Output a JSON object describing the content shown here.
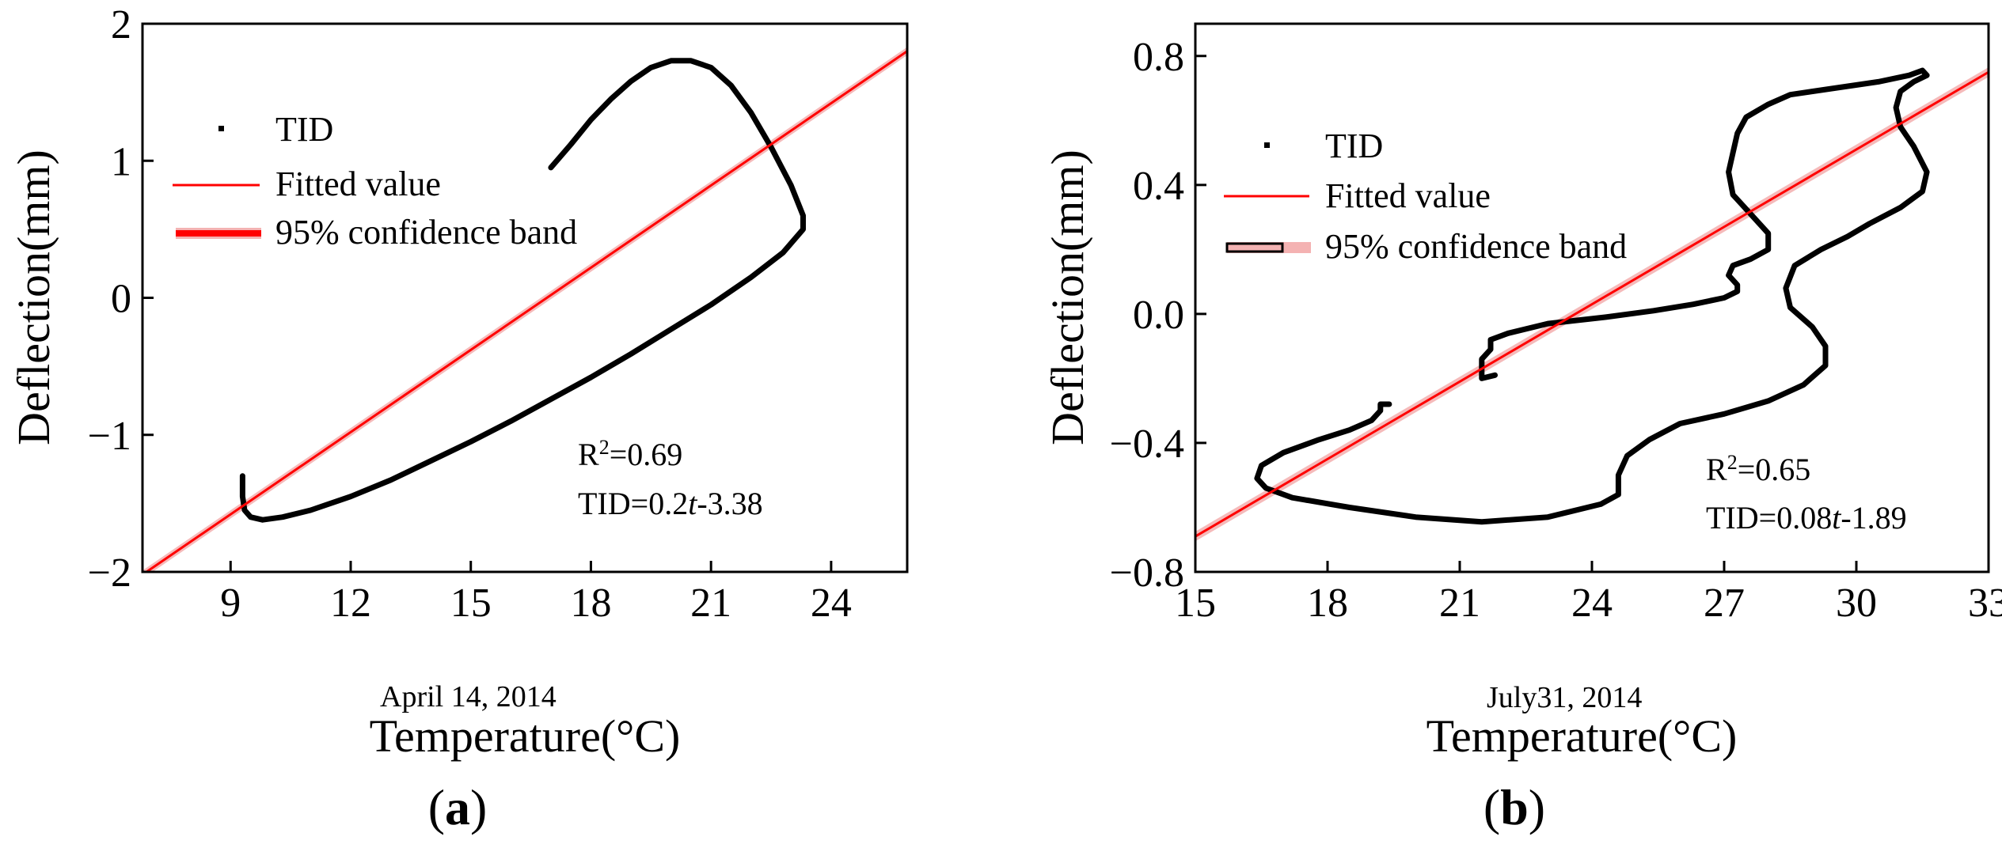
{
  "chart_data": [
    {
      "type": "scatter",
      "panel_label": "(a)",
      "panel_letter": "a",
      "date_label": "April 14, 2014",
      "xlabel": "Temperature(°C)",
      "ylabel": "Deflection(mm)",
      "xlim": [
        6.8,
        25.9
      ],
      "ylim": [
        -2,
        2
      ],
      "xticks": [
        9,
        12,
        15,
        18,
        21,
        24
      ],
      "yticks": [
        2,
        1,
        0,
        -1,
        -2
      ],
      "ytick_labels": [
        "2",
        "1",
        "0",
        "−1",
        "−2"
      ],
      "legend": {
        "position": "upper-left",
        "entries": [
          "TID",
          "Fitted value",
          "95% confidence band"
        ]
      },
      "annotation": {
        "r2": "R²=0.69",
        "equation": "TID=0.2t-3.38"
      },
      "fit": {
        "slope": 0.2,
        "intercept": -3.38,
        "color": "#ff0000"
      },
      "confidence_band": {
        "halfwidth": 0.03,
        "color": "#f4b2b2"
      },
      "series": [
        {
          "name": "TID",
          "color": "#000000",
          "x": [
            9.3,
            9.3,
            9.35,
            9.5,
            9.8,
            10.3,
            11.0,
            12.0,
            13.0,
            14.0,
            15.0,
            16.0,
            17.0,
            18.0,
            19.0,
            20.0,
            21.0,
            22.0,
            22.8,
            23.3,
            23.3,
            23.0,
            22.5,
            22.0,
            21.5,
            21.0,
            20.5,
            20.0,
            19.5,
            19.0,
            18.5,
            18.0,
            17.5,
            17.0
          ],
          "y": [
            -1.3,
            -1.45,
            -1.55,
            -1.6,
            -1.62,
            -1.6,
            -1.55,
            -1.45,
            -1.33,
            -1.19,
            -1.05,
            -0.9,
            -0.74,
            -0.58,
            -0.41,
            -0.23,
            -0.05,
            0.15,
            0.33,
            0.5,
            0.6,
            0.82,
            1.1,
            1.35,
            1.55,
            1.68,
            1.73,
            1.73,
            1.68,
            1.58,
            1.45,
            1.3,
            1.12,
            0.95
          ]
        }
      ]
    },
    {
      "type": "scatter",
      "panel_label": "(b)",
      "panel_letter": "b",
      "date_label": "July31, 2014",
      "xlabel": "Temperature(°C)",
      "ylabel": "Deflection(mm)",
      "xlim": [
        15,
        33
      ],
      "ylim": [
        -0.8,
        0.9
      ],
      "xticks": [
        15,
        18,
        21,
        24,
        27,
        30,
        33
      ],
      "yticks": [
        0.8,
        0.4,
        0.0,
        -0.4,
        -0.8
      ],
      "ytick_labels": [
        "0.8",
        "0.4",
        "0.0",
        "−0.4",
        "−0.8"
      ],
      "legend": {
        "position": "upper-left",
        "entries": [
          "TID",
          "Fitted value",
          "95% confidence band"
        ]
      },
      "annotation": {
        "r2": "R²=0.65",
        "equation": "TID=0.08t-1.89"
      },
      "fit": {
        "slope": 0.08,
        "intercept": -1.89,
        "color": "#ff0000"
      },
      "confidence_band": {
        "halfwidth": 0.015,
        "color": "#f4b2b2"
      },
      "series": [
        {
          "name": "TID",
          "color": "#000000",
          "x": [
            19.4,
            19.2,
            19.2,
            19.0,
            18.5,
            17.8,
            17.0,
            16.5,
            16.4,
            16.6,
            17.2,
            18.5,
            20.0,
            21.5,
            23.0,
            24.2,
            24.6,
            24.6,
            24.8,
            25.3,
            26.0,
            27.0,
            28.0,
            28.8,
            29.3,
            29.3,
            29.0,
            28.5,
            28.4,
            28.6,
            29.2,
            29.8,
            30.3,
            31.0,
            31.5,
            31.6,
            31.3,
            31.0,
            30.9,
            31.0,
            31.3,
            31.6,
            31.5,
            31.2,
            30.5,
            29.5,
            28.5,
            28.0,
            27.5,
            27.3,
            27.2,
            27.1,
            27.2,
            27.6,
            28.0,
            28.0,
            27.6,
            27.2,
            27.1,
            27.3,
            27.3,
            27.0,
            26.3,
            25.4,
            24.3,
            23.0,
            22.1,
            21.7,
            21.7,
            21.5,
            21.5,
            21.8
          ],
          "y": [
            -0.28,
            -0.28,
            -0.3,
            -0.33,
            -0.36,
            -0.39,
            -0.43,
            -0.47,
            -0.51,
            -0.54,
            -0.57,
            -0.6,
            -0.63,
            -0.645,
            -0.63,
            -0.59,
            -0.56,
            -0.5,
            -0.44,
            -0.39,
            -0.34,
            -0.31,
            -0.27,
            -0.22,
            -0.16,
            -0.1,
            -0.04,
            0.02,
            0.08,
            0.15,
            0.2,
            0.24,
            0.28,
            0.33,
            0.38,
            0.44,
            0.52,
            0.58,
            0.64,
            0.69,
            0.72,
            0.74,
            0.755,
            0.74,
            0.72,
            0.7,
            0.68,
            0.65,
            0.61,
            0.56,
            0.5,
            0.44,
            0.37,
            0.31,
            0.25,
            0.2,
            0.17,
            0.15,
            0.12,
            0.09,
            0.07,
            0.05,
            0.03,
            0.01,
            -0.01,
            -0.03,
            -0.06,
            -0.08,
            -0.11,
            -0.14,
            -0.2,
            -0.19
          ]
        }
      ]
    }
  ]
}
